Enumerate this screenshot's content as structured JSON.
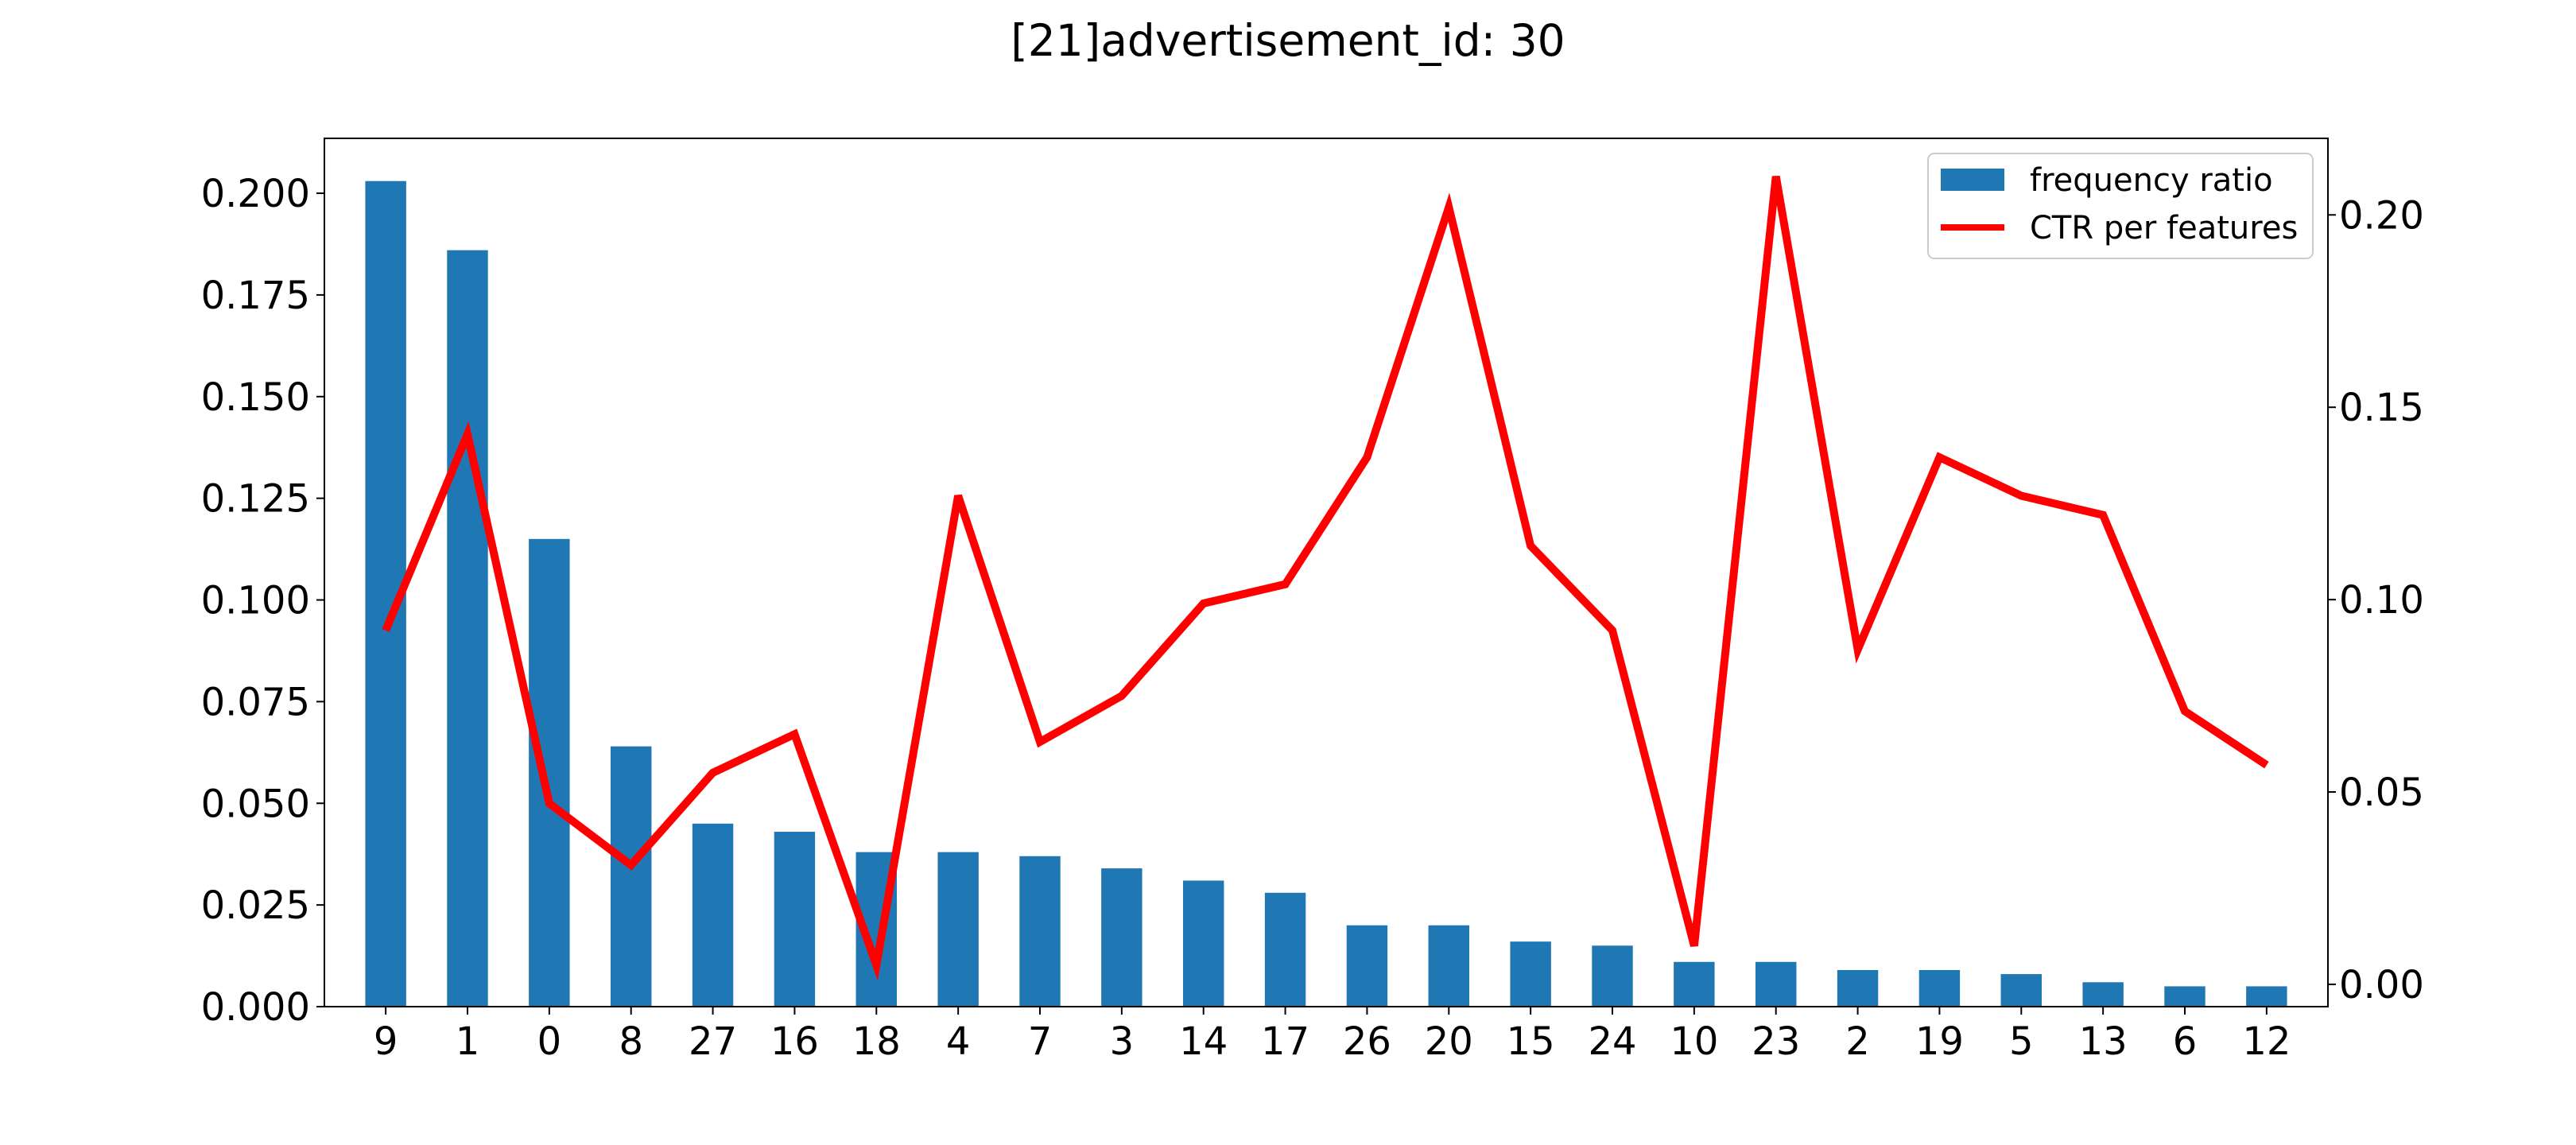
{
  "chart_data": {
    "type": "bar",
    "title": "[21]advertisement_id: 30",
    "categories": [
      "9",
      "1",
      "0",
      "8",
      "27",
      "16",
      "18",
      "4",
      "7",
      "3",
      "14",
      "17",
      "26",
      "20",
      "15",
      "24",
      "10",
      "23",
      "2",
      "19",
      "5",
      "13",
      "6",
      "12"
    ],
    "series": [
      {
        "name": "frequency ratio",
        "type": "bar",
        "axis": "left",
        "color": "#1f77b4",
        "values": [
          0.203,
          0.186,
          0.115,
          0.064,
          0.045,
          0.043,
          0.038,
          0.038,
          0.037,
          0.034,
          0.031,
          0.028,
          0.02,
          0.02,
          0.016,
          0.015,
          0.011,
          0.011,
          0.009,
          0.009,
          0.008,
          0.006,
          0.005,
          0.005
        ]
      },
      {
        "name": "CTR per features",
        "type": "line",
        "axis": "right",
        "color": "#ff0000",
        "values": [
          0.092,
          0.143,
          0.047,
          0.031,
          0.055,
          0.065,
          0.005,
          0.127,
          0.063,
          0.075,
          0.099,
          0.104,
          0.137,
          0.202,
          0.114,
          0.092,
          0.01,
          0.21,
          0.087,
          0.137,
          0.127,
          0.122,
          0.071,
          0.057
        ]
      }
    ],
    "y_left": {
      "lim": [
        0,
        0.2135
      ],
      "ticks": [
        "0.000",
        "0.025",
        "0.050",
        "0.075",
        "0.100",
        "0.125",
        "0.150",
        "0.175",
        "0.200"
      ]
    },
    "y_right": {
      "lim": [
        -0.0058,
        0.2199
      ],
      "ticks": [
        "0.00",
        "0.05",
        "0.10",
        "0.15",
        "0.20"
      ]
    },
    "xlabel": "",
    "ylabel": "",
    "grid": false,
    "legend": "upper right"
  }
}
